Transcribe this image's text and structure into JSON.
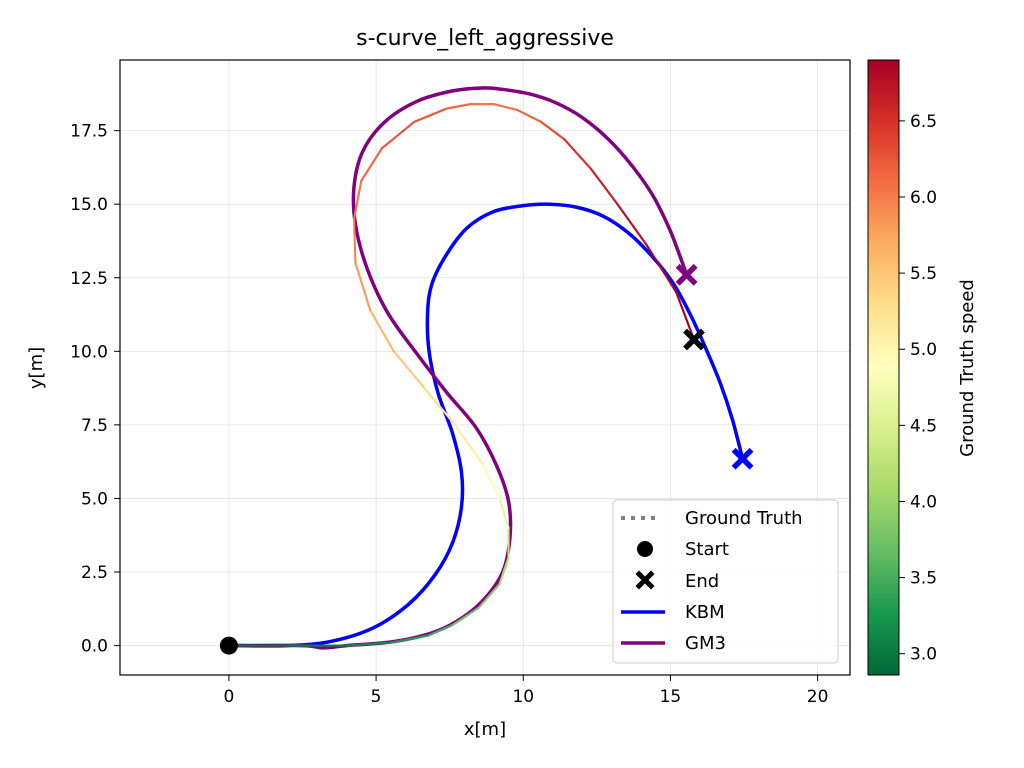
{
  "chart_data": {
    "type": "line",
    "title": "s-curve_left_aggressive",
    "xlabel": "x[m]",
    "ylabel": "y[m]",
    "xlim": [
      -3.7,
      21.1
    ],
    "ylim": [
      -1.0,
      19.9
    ],
    "xticks": [
      0,
      5,
      10,
      15,
      20
    ],
    "yticks": [
      0.0,
      2.5,
      5.0,
      7.5,
      10.0,
      12.5,
      15.0,
      17.5
    ],
    "grid": true,
    "legend_position": "lower-right",
    "legend": [
      {
        "label": "Ground Truth",
        "style": "dotted",
        "color": "#808080"
      },
      {
        "label": "Start",
        "style": "circle-marker",
        "color": "#000000"
      },
      {
        "label": "End",
        "style": "x-marker",
        "color": "#000000"
      },
      {
        "label": "KBM",
        "style": "line",
        "color": "#0000ff"
      },
      {
        "label": "GM3",
        "style": "line",
        "color": "#800080"
      }
    ],
    "colorbar": {
      "label": "Ground Truth speed",
      "range": [
        2.86,
        6.9
      ],
      "ticks": [
        3.0,
        3.5,
        4.0,
        4.5,
        5.0,
        5.5,
        6.0,
        6.5
      ],
      "colormap": "RdYlGn_r"
    },
    "series": [
      {
        "name": "Ground Truth",
        "color_by": "speed",
        "x": [
          0,
          2,
          4,
          5.5,
          6.8,
          7.6,
          8.5,
          9.2,
          9.5,
          9.5,
          9.2,
          8.6,
          7.6,
          6.6,
          5.6,
          4.8,
          4.3,
          4.25,
          4.5,
          5.2,
          6.3,
          7.4,
          8.2,
          9.0,
          9.8,
          10.6,
          11.4,
          12.3,
          13.2,
          14.2,
          15.2,
          15.8
        ],
        "y": [
          0,
          0,
          0,
          0.1,
          0.35,
          0.7,
          1.3,
          2.1,
          3.0,
          4.0,
          5.0,
          6.2,
          7.6,
          8.8,
          10.0,
          11.4,
          13.0,
          14.5,
          15.8,
          16.9,
          17.8,
          18.25,
          18.4,
          18.4,
          18.2,
          17.8,
          17.2,
          16.2,
          15.0,
          13.6,
          12.0,
          10.4
        ],
        "speed": [
          2.9,
          3.0,
          3.1,
          3.2,
          3.4,
          3.6,
          3.8,
          4.0,
          4.2,
          4.5,
          4.8,
          5.0,
          5.2,
          5.4,
          5.5,
          5.7,
          5.9,
          6.0,
          6.1,
          6.2,
          6.3,
          6.2,
          6.1,
          6.0,
          6.1,
          6.2,
          6.4,
          6.6,
          6.7,
          6.8,
          6.9,
          6.9
        ]
      },
      {
        "name": "KBM",
        "color": "#0000ff",
        "x": [
          0,
          2,
          3.5,
          4.9,
          6.1,
          7.0,
          7.6,
          7.9,
          7.9,
          7.6,
          7.1,
          6.8,
          6.75,
          6.9,
          7.4,
          8.1,
          9.0,
          10.0,
          10.9,
          11.8,
          12.7,
          13.6,
          14.4,
          15.1,
          15.7,
          16.2,
          16.7,
          17.1,
          17.45
        ],
        "y": [
          0,
          0,
          0.15,
          0.6,
          1.4,
          2.4,
          3.5,
          4.7,
          5.9,
          7.2,
          8.6,
          10.0,
          11.3,
          12.3,
          13.3,
          14.2,
          14.75,
          14.95,
          15.0,
          14.9,
          14.6,
          14.0,
          13.2,
          12.3,
          11.2,
          10.1,
          8.9,
          7.7,
          6.35
        ]
      },
      {
        "name": "GM3",
        "color": "#800080",
        "x": [
          0,
          2.5,
          3.2,
          4.0,
          5.5,
          6.8,
          7.7,
          8.6,
          9.3,
          9.55,
          9.5,
          9.1,
          8.4,
          7.4,
          6.4,
          5.4,
          4.7,
          4.3,
          4.25,
          4.55,
          5.3,
          6.4,
          7.6,
          8.6,
          9.3,
          10.2,
          11.1,
          12.0,
          12.9,
          13.7,
          14.4,
          14.95,
          15.3,
          15.55
        ],
        "y": [
          0,
          0,
          -0.08,
          0,
          0.12,
          0.4,
          0.8,
          1.5,
          2.5,
          3.7,
          4.9,
          6.1,
          7.4,
          8.6,
          9.9,
          11.3,
          12.8,
          14.3,
          15.6,
          16.8,
          17.8,
          18.5,
          18.85,
          18.95,
          18.9,
          18.75,
          18.45,
          17.95,
          17.2,
          16.3,
          15.3,
          14.2,
          13.3,
          12.6
        ]
      }
    ],
    "markers": [
      {
        "name": "Start",
        "shape": "circle",
        "x": 0,
        "y": 0,
        "color": "#000000"
      },
      {
        "name": "End",
        "shape": "x",
        "x": 15.8,
        "y": 10.4,
        "color": "#000000"
      },
      {
        "name": "KBM-end",
        "shape": "x",
        "x": 17.45,
        "y": 6.35,
        "color": "#0000ff"
      },
      {
        "name": "GM3-end",
        "shape": "x",
        "x": 15.55,
        "y": 12.6,
        "color": "#800080"
      }
    ]
  }
}
